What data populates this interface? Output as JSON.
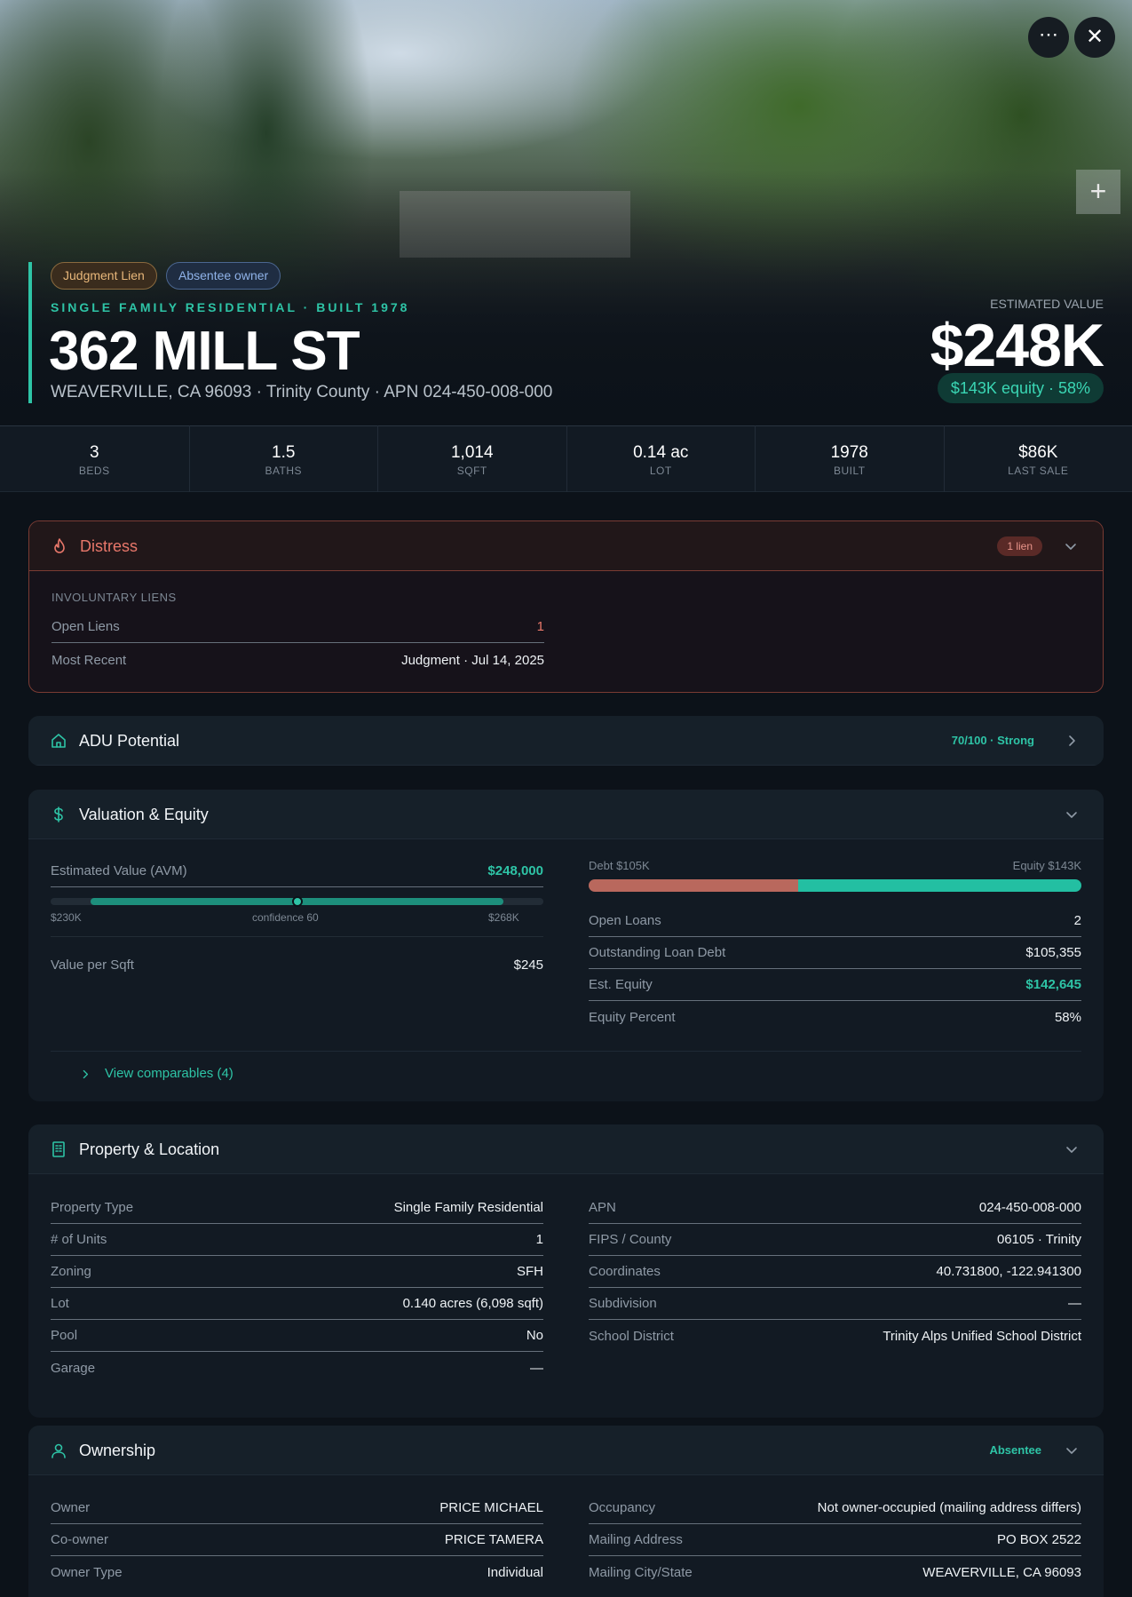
{
  "header": {
    "tags": [
      "Judgment Lien",
      "Absentee owner"
    ],
    "subtitle": "SINGLE FAMILY RESIDENTIAL · BUILT 1978",
    "title": "362 MILL ST",
    "address": "WEAVERVILLE, CA 96093 · Trinity County · APN 024-450-008-000",
    "value_label": "ESTIMATED VALUE",
    "value": "$248K",
    "equity": "$143K equity · 58%"
  },
  "stats": [
    {
      "value": "3",
      "label": "BEDS"
    },
    {
      "value": "1.5",
      "label": "BATHS"
    },
    {
      "value": "1,014",
      "label": "SQFT"
    },
    {
      "value": "0.14 ac",
      "label": "LOT"
    },
    {
      "value": "1978",
      "label": "BUILT"
    },
    {
      "value": "$86K",
      "label": "LAST SALE"
    }
  ],
  "distress": {
    "title": "Distress",
    "badge": "1 lien",
    "section": "INVOLUNTARY LIENS",
    "rows": [
      [
        "Open Liens",
        "1"
      ],
      [
        "Most Recent",
        "Judgment · Jul 14, 2025"
      ]
    ]
  },
  "adu": {
    "title": "ADU Potential",
    "score": "70/100 · Strong"
  },
  "valuation": {
    "title": "Valuation & Equity",
    "avm_label": "Estimated Value (AVM)",
    "avm": "$248,000",
    "range_low": "$230K",
    "confidence": "confidence 60",
    "range_high": "$268K",
    "per_sqft_label": "Value per Sqft",
    "per_sqft": "$245",
    "debt_label": "Debt $105K",
    "equity_label": "Equity $143K",
    "rows": [
      [
        "Open Loans",
        "2"
      ],
      [
        "Outstanding Loan Debt",
        "$105,355"
      ],
      [
        "Est. Equity",
        "$142,645"
      ],
      [
        "Equity Percent",
        "58%"
      ]
    ],
    "comparables": "View comparables (4)"
  },
  "property": {
    "title": "Property & Location",
    "left": [
      [
        "Property Type",
        "Single Family Residential"
      ],
      [
        "# of Units",
        "1"
      ],
      [
        "Zoning",
        "SFH"
      ],
      [
        "Lot",
        "0.140 acres (6,098 sqft)"
      ],
      [
        "Pool",
        "No"
      ],
      [
        "Garage",
        "—"
      ]
    ],
    "right": [
      [
        "APN",
        "024-450-008-000"
      ],
      [
        "FIPS / County",
        "06105 · Trinity"
      ],
      [
        "Coordinates",
        "40.731800, -122.941300"
      ],
      [
        "Subdivision",
        "—"
      ],
      [
        "School District",
        "Trinity Alps Unified School District"
      ]
    ]
  },
  "ownership": {
    "title": "Ownership",
    "badge": "Absentee",
    "left": [
      [
        "Owner",
        "PRICE MICHAEL"
      ],
      [
        "Co-owner",
        "PRICE TAMERA"
      ],
      [
        "Owner Type",
        "Individual"
      ]
    ],
    "right": [
      [
        "Occupancy",
        "Not owner-occupied (mailing address differs)"
      ],
      [
        "Mailing Address",
        "PO BOX 2522"
      ],
      [
        "Mailing City/State",
        "WEAVERVILLE, CA 96093"
      ]
    ]
  }
}
